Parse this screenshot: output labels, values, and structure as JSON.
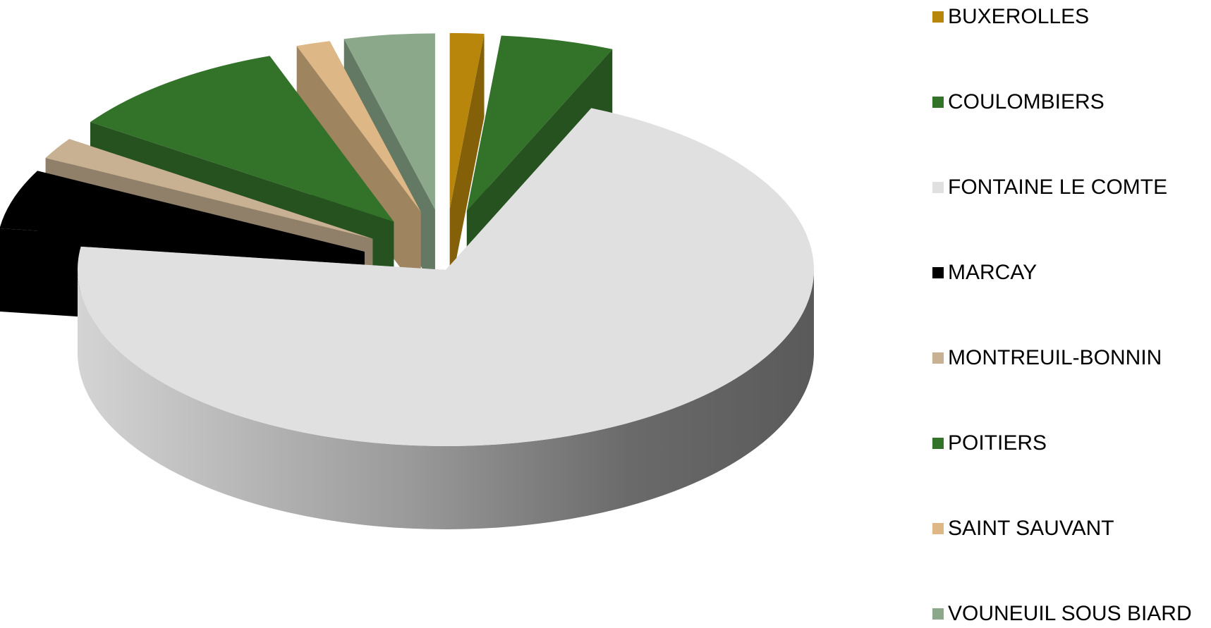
{
  "chart_data": {
    "type": "pie",
    "style": "3d-exploded",
    "title": "",
    "legend_position": "right",
    "slices": [
      {
        "name": "BUXEROLLES",
        "value": 1.5,
        "color": "#B8860B"
      },
      {
        "name": "COULOMBIERS",
        "value": 5.0,
        "color": "#337229"
      },
      {
        "name": "FONTAINE LE COMTE",
        "value": 71.0,
        "color": "#E0E0E0"
      },
      {
        "name": "MARCAY",
        "value": 5.5,
        "color": "#000000"
      },
      {
        "name": "MONTREUIL-BONNIN",
        "value": 2.0,
        "color": "#C8B092"
      },
      {
        "name": "POITIERS",
        "value": 10.0,
        "color": "#337229"
      },
      {
        "name": "SAINT SAUVANT",
        "value": 1.5,
        "color": "#DDB785"
      },
      {
        "name": "VOUNEUIL SOUS BIARD",
        "value": 4.0,
        "color": "#8BA88A"
      }
    ]
  }
}
